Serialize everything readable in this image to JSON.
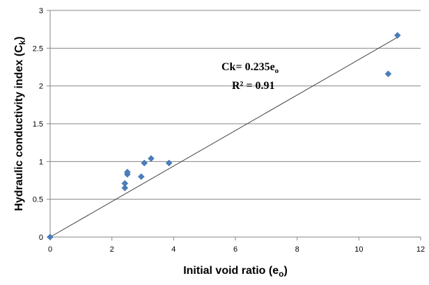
{
  "chart_data": {
    "type": "scatter",
    "title": "",
    "xlabel": "Initial void ratio (e",
    "xlabel_sub": "o",
    "xlabel_end": ")",
    "ylabel": "Hydraulic conductivity index (C",
    "ylabel_sub": "k",
    "ylabel_end": ")",
    "xlim": [
      0,
      12
    ],
    "ylim": [
      0,
      3
    ],
    "xticks": [
      "0",
      "2",
      "4",
      "6",
      "8",
      "10",
      "12"
    ],
    "yticks": [
      "0",
      "0.5",
      "1",
      "1.5",
      "2",
      "2.5",
      "3"
    ],
    "grid": "horizontal",
    "legend": "none",
    "marker_color": "#4a7ebb",
    "trendline_color": "#404040",
    "series": [
      {
        "points": [
          {
            "x": 0,
            "y": 0
          },
          {
            "x": 2.42,
            "y": 0.65
          },
          {
            "x": 2.42,
            "y": 0.71
          },
          {
            "x": 2.5,
            "y": 0.83
          },
          {
            "x": 2.5,
            "y": 0.86
          },
          {
            "x": 2.95,
            "y": 0.8
          },
          {
            "x": 3.05,
            "y": 0.98
          },
          {
            "x": 3.27,
            "y": 1.04
          },
          {
            "x": 3.85,
            "y": 0.98
          },
          {
            "x": 10.95,
            "y": 2.16
          },
          {
            "x": 11.25,
            "y": 2.67
          }
        ]
      }
    ],
    "trendline": {
      "slope": 0.235,
      "intercept": 0,
      "x_start": 0,
      "x_end": 11.25
    },
    "annotations": {
      "equation": "Ck= 0.235e",
      "equation_sub": "o",
      "r_squared": "R² = 0.91"
    }
  }
}
